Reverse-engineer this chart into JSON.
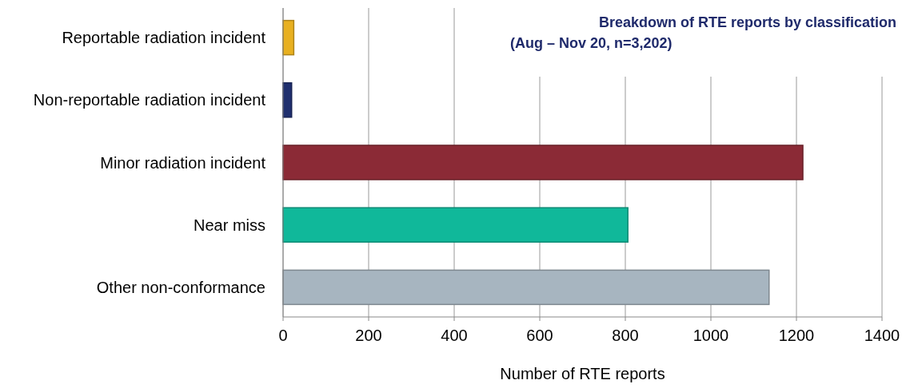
{
  "chart_data": {
    "type": "bar",
    "orientation": "horizontal",
    "title": "Breakdown of RTE reports by classification",
    "subtitle": "(Aug – Nov 20, n=3,202)",
    "xlabel": "Number of RTE reports",
    "categories": [
      "Reportable radiation incident",
      "Non-reportable radiation incident",
      "Minor radiation incident",
      "Near miss",
      "Other non-conformance"
    ],
    "values": [
      25,
      20,
      1215,
      806,
      1136
    ],
    "colors": [
      "#e8b020",
      "#1f2f6e",
      "#8b2a36",
      "#10b89a",
      "#a7b5c0"
    ],
    "xlim": [
      0,
      1400
    ],
    "xticks": [
      0,
      200,
      400,
      600,
      800,
      1000,
      1200,
      1400
    ],
    "grid": "x"
  }
}
